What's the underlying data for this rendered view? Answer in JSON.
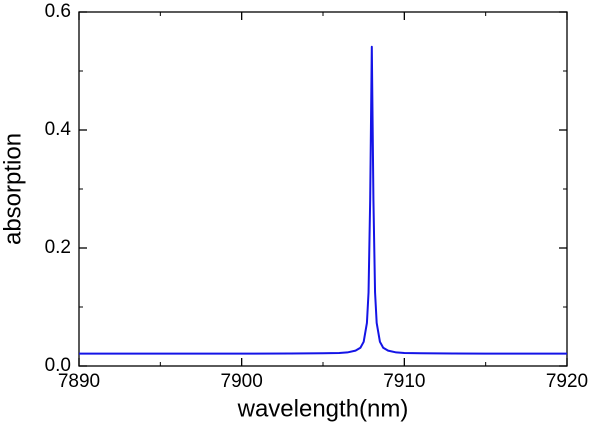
{
  "chart_data": {
    "type": "line",
    "x_label": "wavelength(nm)",
    "y_label": "absorption",
    "x": [
      7890,
      7895,
      7900,
      7903,
      7905,
      7906,
      7906.5,
      7907,
      7907.3,
      7907.5,
      7907.7,
      7907.8,
      7907.9,
      7908.0,
      7908.1,
      7908.2,
      7908.3,
      7908.5,
      7908.7,
      7909,
      7909.5,
      7910,
      7911,
      7913,
      7915,
      7920
    ],
    "series": [
      {
        "color": "#1414e6",
        "values": [
          0.021,
          0.021,
          0.021,
          0.0212,
          0.0216,
          0.022,
          0.023,
          0.026,
          0.031,
          0.041,
          0.073,
          0.125,
          0.281,
          0.541,
          0.281,
          0.125,
          0.073,
          0.041,
          0.031,
          0.026,
          0.023,
          0.022,
          0.0216,
          0.0212,
          0.021,
          0.021
        ]
      }
    ],
    "xlim": [
      7890,
      7920
    ],
    "xticks": [
      7890,
      7900,
      7910,
      7920
    ],
    "ylim": [
      0,
      0.6
    ],
    "yticks": [
      {
        "value": 0,
        "label": "0.0"
      },
      0.2,
      0.4,
      0.6
    ]
  }
}
